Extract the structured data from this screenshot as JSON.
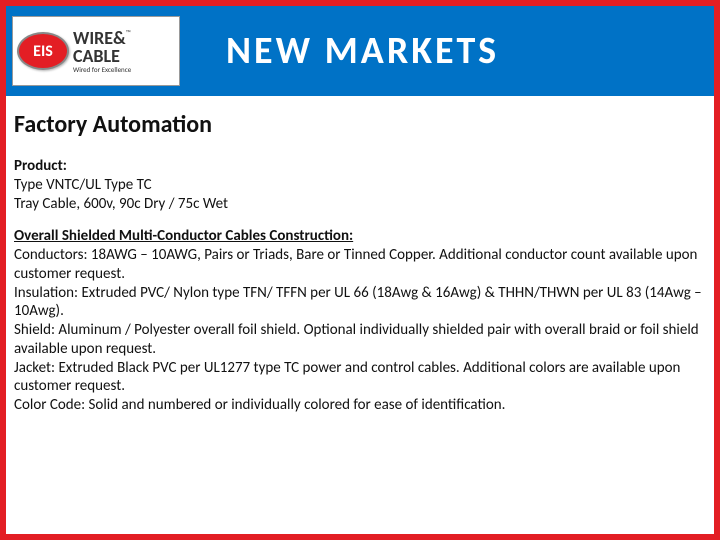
{
  "colors": {
    "border": "#e31e24",
    "header_bg": "#0072c6",
    "title_color": "#ffffff",
    "text_color": "#111111",
    "logo_red": "#e31e24"
  },
  "logo": {
    "badge": "EIS",
    "line1": "WIRE&",
    "tm": "™",
    "line2": "CABLE",
    "tagline": "Wired for Excellence"
  },
  "title": "NEW MARKETS",
  "section": "Factory Automation",
  "product": {
    "label": "Product:",
    "line1": "Type VNTC/UL Type TC",
    "line2": "Tray Cable, 600v, 90c Dry / 75c Wet"
  },
  "construction": {
    "heading": "Overall Shielded Multi-Conductor Cables Construction:",
    "conductors": "Conductors: 18AWG – 10AWG, Pairs or Triads, Bare or Tinned Copper. Additional conductor count available upon customer request.",
    "insulation": "Insulation: Extruded PVC/ Nylon type TFN/ TFFN per UL 66 (18Awg & 16Awg) & THHN/THWN per UL 83 (14Awg – 10Awg).",
    "shield": "Shield: Aluminum / Polyester overall foil shield. Optional individually shielded pair with overall braid or foil shield available upon request.",
    "jacket": "Jacket: Extruded Black PVC per UL1277 type TC power and control cables. Additional colors are available upon customer request.",
    "colorcode": "Color Code: Solid and numbered or individually colored for ease of identification."
  }
}
